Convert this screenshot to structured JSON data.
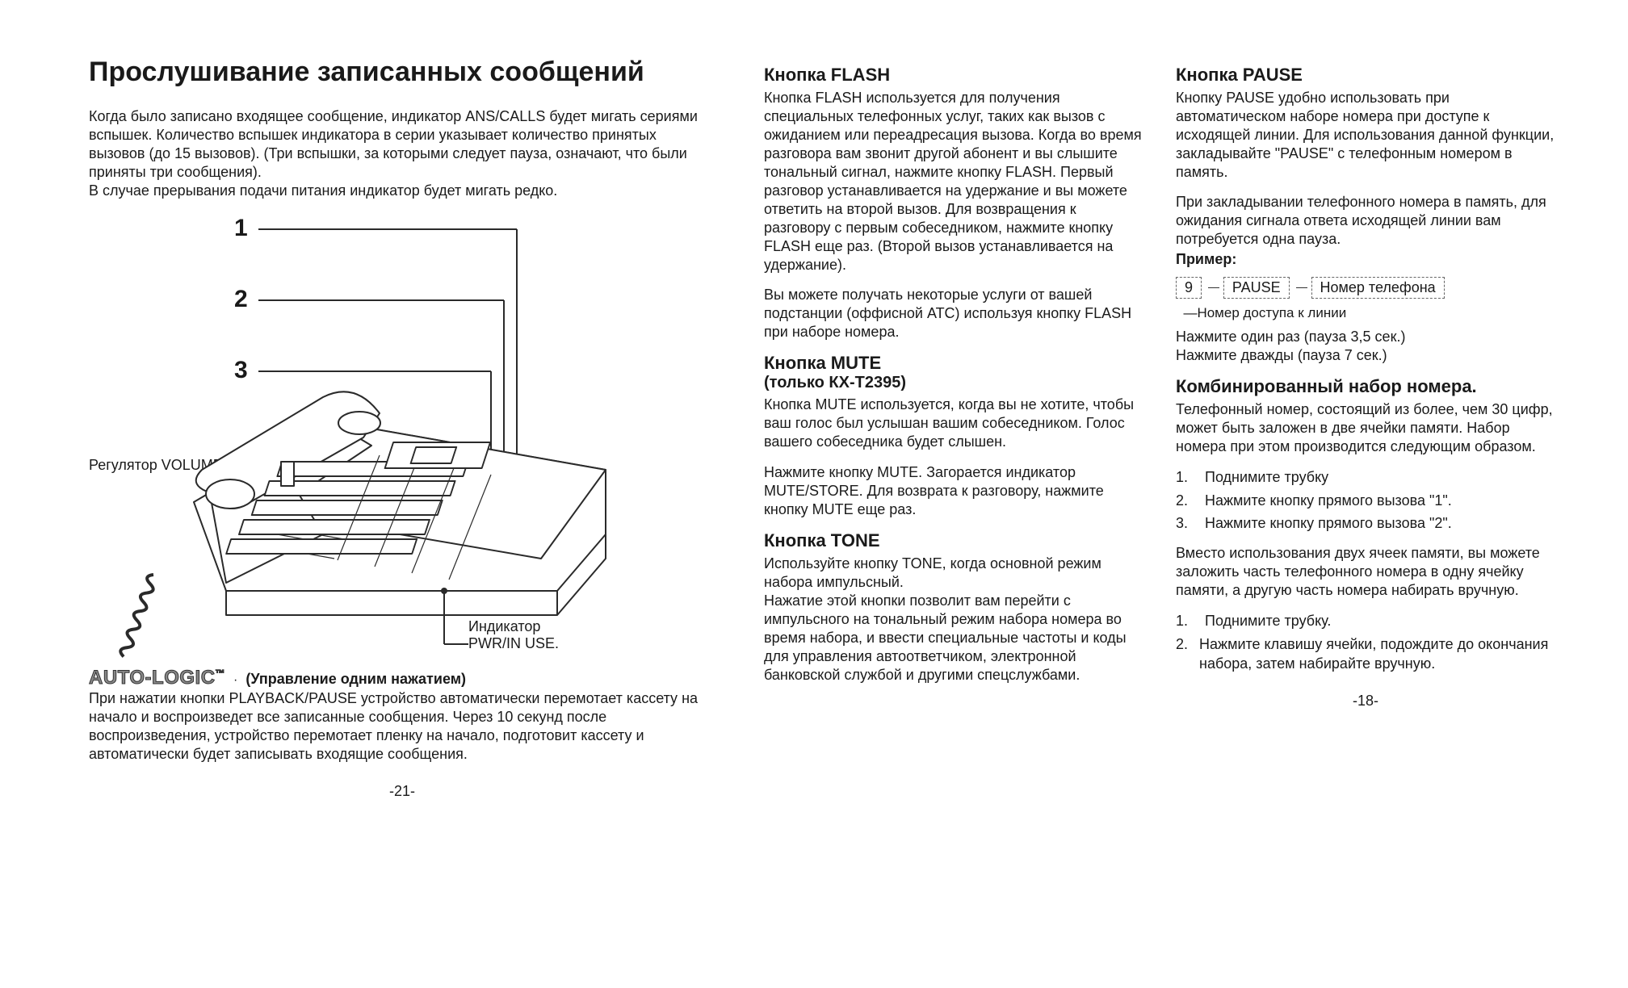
{
  "left": {
    "title": "Прослушивание записанных сообщений",
    "intro": "Когда было записано входящее сообщение, индикатор ANS/CALLS будет мигать сериями вспышек. Количество вспышек индикатора в серии указывает количество принятых вызовов (до 15 вызовов). (Три вспышки, за которыми следует пауза, означают, что были приняты три сообщения).\nВ случае прерывания подачи питания индикатор будет мигать редко.",
    "callouts": {
      "n1": "1",
      "n2": "2",
      "n3": "3",
      "volume": "Регулятор VOLUME",
      "pwr": "Индикатор\nPWR/IN USE."
    },
    "autologic": {
      "logo": "AUTO-LOGIC",
      "tm": "™",
      "subtitle": "(Управление одним нажатием)",
      "body": "При нажатии кнопки PLAYBACK/PAUSE устройство автоматически перемотает кассету на начало и воспроизведет все записанные сообщения. Через 10 секунд после воспроизведения, устройство перемотает пленку на начало, подготовит кассету и автоматически будет записывать входящие сообщения."
    },
    "pagenum": "-21-"
  },
  "right": {
    "col1": {
      "flash": {
        "title": "Кнопка FLASH",
        "p1": "Кнопка FLASH используется для получения специальных телефонных услуг, таких как вызов с ожиданием или переадресация вызова. Когда во время разговора вам звонит другой абонент и вы слышите тональный сигнал, нажмите кнопку FLASH. Первый разговор устанавливается на удержание и вы можете ответить на второй вызов. Для возвращения к разговору с первым собеседником, нажмите кнопку FLASH еще раз. (Второй вызов устанавливается на удержание).",
        "p2": "Вы можете получать некоторые услуги от вашей подстанции (оффисной АТС) используя кнопку FLASH при наборе номера."
      },
      "mute": {
        "title": "Кнопка MUTE",
        "subtitle": "(только КХ-Т2395)",
        "p1": "Кнопка MUTE используется, когда вы не хотите, чтобы ваш голос был услышан вашим собеседником. Голос вашего собеседника будет слышен.",
        "p2": "Нажмите кнопку MUTE. Загорается индикатор MUTE/STORE. Для возврата к разговору, нажмите кнопку MUTE еще раз."
      },
      "tone": {
        "title": "Кнопка TONE",
        "p1": "Используйте кнопку TONE, когда основной режим набора импульсный.\nНажатие этой кнопки позволит вам перейти с импульсного на тональный режим набора номера во время набора, и ввести специальные частоты и коды для управления автоответчиком, электронной банковской службой и другими спецслужбами."
      }
    },
    "col2": {
      "pause": {
        "title": "Кнопка PAUSE",
        "p1": "Кнопку PAUSE удобно использовать при автоматическом наборе номера при доступе к исходящей линии. Для использования данной функции, закладывайте \"PAUSE\" с телефонным номером в память.",
        "p2": "При закладывании телефонного номера в память, для ожидания сигнала ответа исходящей линии вам потребуется одна пауза.",
        "example_label": "Пример:",
        "box1": "9",
        "box2": "PAUSE",
        "box3": "Номер телефона",
        "arrow_label": "—Номер доступа к линии",
        "p3": "Нажмите один раз (пауза 3,5 сек.)\nНажмите дважды (пауза 7 сек.)"
      },
      "combo": {
        "title": "Комбинированный набор номера.",
        "p1": "Телефонный номер, состоящий из более, чем 30 цифр, может быть заложен в две ячейки памяти. Набор номера при этом производится следующим образом.",
        "list1": [
          {
            "n": "1.",
            "t": "Поднимите трубку"
          },
          {
            "n": "2.",
            "t": "Нажмите кнопку прямого вызова \"1\"."
          },
          {
            "n": "3.",
            "t": "Нажмите кнопку прямого вызова \"2\"."
          }
        ],
        "p2": "Вместо использования двух ячеек памяти, вы можете заложить часть телефонного номера в одну ячейку памяти, а другую часть номера набирать вручную.",
        "list2": [
          {
            "n": "1.",
            "t": "Поднимите трубку."
          },
          {
            "n": "2.",
            "t": "Нажмите клавишу ячейки, подождите до окончания набора, затем набирайте вручную."
          }
        ]
      }
    },
    "pagenum": "-18-"
  },
  "style": {
    "body_font_size": 18,
    "title_font_size": 34,
    "section_font_size": 22,
    "text_color": "#1a1a1a",
    "background": "#ffffff",
    "diagram_stroke": "#2a2a2a",
    "diagram_stroke_width": 2
  }
}
